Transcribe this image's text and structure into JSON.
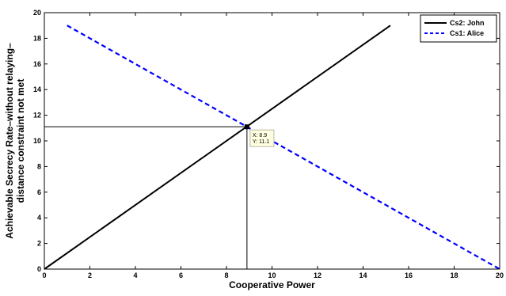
{
  "chart_data": {
    "type": "line",
    "xlabel": "Cooperative Power",
    "ylabel_lines": [
      "Achievable Secrecy Rate–without relaying–",
      "distance constraint not met"
    ],
    "xlim": [
      0,
      20
    ],
    "ylim": [
      0,
      20
    ],
    "xticks": [
      0,
      2,
      4,
      6,
      8,
      10,
      12,
      14,
      16,
      18,
      20
    ],
    "yticks": [
      0,
      2,
      4,
      6,
      8,
      10,
      12,
      14,
      16,
      18,
      20
    ],
    "grid": false,
    "legend_position": "top-right",
    "series": [
      {
        "name": "Cs2: John",
        "color": "#000000",
        "style": "solid",
        "points": [
          [
            0,
            0
          ],
          [
            15.2,
            19
          ]
        ]
      },
      {
        "name": "Cs1: Alice",
        "color": "#0000ff",
        "style": "dashed",
        "points": [
          [
            1,
            19
          ],
          [
            20,
            0
          ]
        ]
      }
    ],
    "reference_lines": [
      {
        "points": [
          [
            0,
            11.1
          ],
          [
            8.9,
            11.1
          ]
        ]
      },
      {
        "points": [
          [
            8.9,
            0
          ],
          [
            8.9,
            11.1
          ]
        ]
      }
    ],
    "datatip": {
      "x": 8.9,
      "y": 11.1,
      "line1": "X: 8.9",
      "line2": "Y: 11.1"
    }
  }
}
